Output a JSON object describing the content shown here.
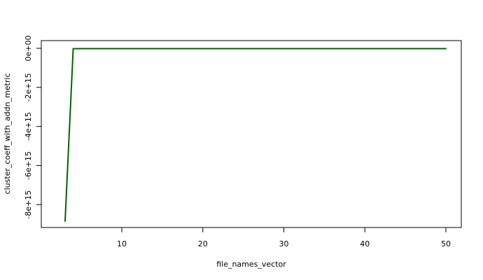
{
  "chart_data": {
    "type": "line",
    "title": "",
    "xlabel": "file_names_vector",
    "ylabel": "cluster_coeff_with_addn_metric",
    "xlim": [
      3,
      50
    ],
    "ylim": [
      -8850000000000000.0,
      0
    ],
    "x_ticks": [
      10,
      20,
      30,
      40,
      50
    ],
    "x_tick_labels": [
      "10",
      "20",
      "30",
      "40",
      "50"
    ],
    "y_ticks": [
      0,
      -2000000000000000.0,
      -4000000000000000.0,
      -6000000000000000.0,
      -8000000000000000.0
    ],
    "y_tick_labels": [
      "0e+00",
      "-2e+15",
      "-4e+15",
      "-6e+15",
      "-8e+15"
    ],
    "grid": false,
    "line_color": "#006400",
    "series": [
      {
        "x": [
          3,
          4,
          5,
          6,
          7,
          8,
          9,
          10,
          11,
          12,
          13,
          14,
          15,
          16,
          17,
          18,
          19,
          20,
          21,
          22,
          23,
          24,
          25,
          26,
          27,
          28,
          29,
          30,
          31,
          32,
          33,
          34,
          35,
          36,
          37,
          38,
          39,
          40,
          41,
          42,
          43,
          44,
          45,
          46,
          47,
          48,
          49,
          50
        ],
        "values": [
          -8850000000000000.0,
          -20000000000000.0,
          -20000000000000.0,
          -20000000000000.0,
          -20000000000000.0,
          -20000000000000.0,
          -20000000000000.0,
          -20000000000000.0,
          -20000000000000.0,
          -20000000000000.0,
          -20000000000000.0,
          -20000000000000.0,
          -20000000000000.0,
          -20000000000000.0,
          -20000000000000.0,
          -20000000000000.0,
          -20000000000000.0,
          -20000000000000.0,
          -20000000000000.0,
          -20000000000000.0,
          -20000000000000.0,
          -20000000000000.0,
          -20000000000000.0,
          -20000000000000.0,
          -20000000000000.0,
          -20000000000000.0,
          -20000000000000.0,
          -20000000000000.0,
          -20000000000000.0,
          -20000000000000.0,
          -20000000000000.0,
          -20000000000000.0,
          -20000000000000.0,
          -20000000000000.0,
          -20000000000000.0,
          -20000000000000.0,
          -20000000000000.0,
          -20000000000000.0,
          -20000000000000.0,
          -20000000000000.0,
          -20000000000000.0,
          -20000000000000.0,
          -20000000000000.0,
          -20000000000000.0,
          -20000000000000.0,
          -20000000000000.0,
          -20000000000000.0,
          -20000000000000.0
        ]
      }
    ]
  }
}
